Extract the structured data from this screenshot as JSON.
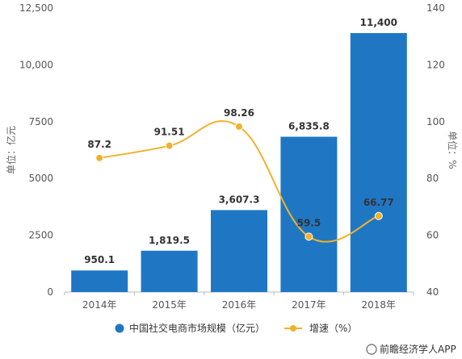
{
  "chart_data": {
    "type": "bar",
    "categories": [
      "2014年",
      "2015年",
      "2016年",
      "2017年",
      "2018年"
    ],
    "series": [
      {
        "name": "中国社交电商市场规模（亿元）",
        "type": "bar",
        "axis": "left",
        "values": [
          950.1,
          1819.5,
          3607.3,
          6835.8,
          11400
        ],
        "labels": [
          "950.1",
          "1,819.5",
          "3,607.3",
          "6,835.8",
          "11,400"
        ],
        "color": "#1f77c4"
      },
      {
        "name": "增速（%）",
        "type": "line",
        "axis": "right",
        "values": [
          87.2,
          91.51,
          98.26,
          59.5,
          66.77
        ],
        "labels": [
          "87.2",
          "91.51",
          "98.26",
          "59.5",
          "66.77"
        ],
        "color": "#f0b22a"
      }
    ],
    "ylabel_left": "单位：亿元",
    "ylabel_right": "单位：%",
    "ylim_left": [
      0,
      12500
    ],
    "ylim_right": [
      40,
      140
    ],
    "yticks_left": [
      "0",
      "2500",
      "5000",
      "7500",
      "10,000",
      "12,500"
    ],
    "yticks_right": [
      "40",
      "60",
      "80",
      "100",
      "120",
      "140"
    ],
    "legend_position": "bottom",
    "grid": false
  },
  "source": "前瞻经济学人APP"
}
